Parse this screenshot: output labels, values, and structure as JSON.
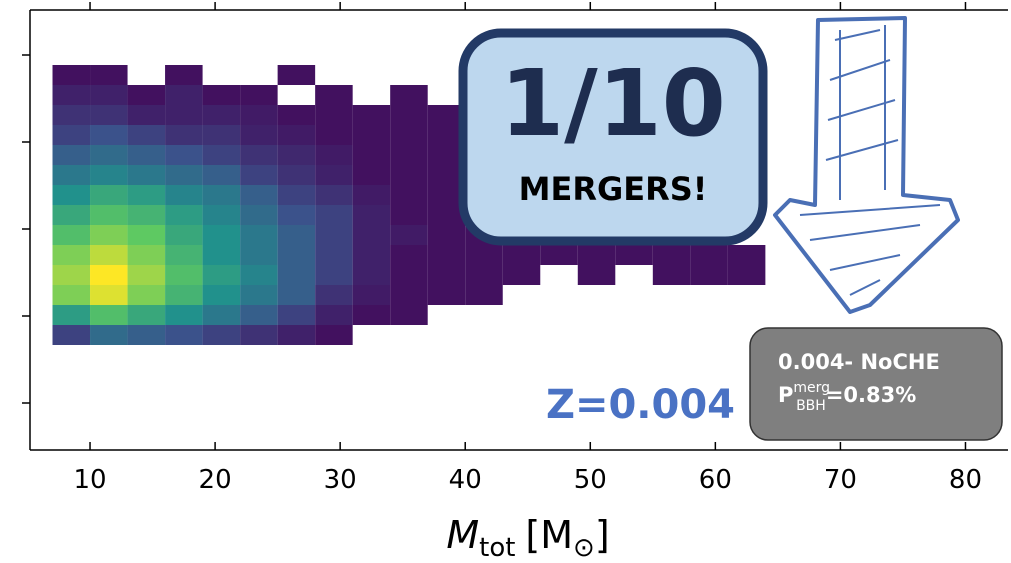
{
  "chart_data": {
    "type": "heatmap2d",
    "colormap": "viridis",
    "xlabel": {
      "symbol": "M",
      "subscript": "tot",
      "unit_open": "[M",
      "unit_sub": "⊙",
      "unit_close": "]"
    },
    "xlim": [
      5.2,
      83.4
    ],
    "xticks": [
      10,
      20,
      30,
      40,
      50,
      60,
      70,
      80
    ],
    "x_bins": [
      7,
      10,
      13,
      16,
      19,
      22,
      25,
      28,
      31,
      34,
      37,
      40,
      43,
      46,
      49,
      52,
      55,
      58,
      61,
      64
    ],
    "z": [
      [
        0.05,
        0.05,
        null,
        0.05,
        null,
        null,
        0.05,
        null,
        null,
        null,
        null,
        null,
        null,
        null,
        null,
        null,
        null,
        null,
        null
      ],
      [
        0.1,
        0.1,
        0.05,
        0.1,
        0.05,
        0.05,
        null,
        0.05,
        null,
        0.05,
        null,
        null,
        null,
        null,
        null,
        null,
        null,
        null,
        null
      ],
      [
        0.15,
        0.15,
        0.1,
        0.1,
        0.1,
        0.08,
        0.05,
        0.05,
        0.05,
        0.05,
        0.05,
        0.05,
        null,
        null,
        null,
        null,
        null,
        null,
        null
      ],
      [
        0.2,
        0.25,
        0.2,
        0.15,
        0.15,
        0.1,
        0.08,
        0.05,
        0.05,
        0.05,
        0.05,
        null,
        null,
        null,
        null,
        null,
        null,
        null,
        null
      ],
      [
        0.3,
        0.35,
        0.3,
        0.25,
        0.2,
        0.15,
        0.12,
        0.08,
        0.05,
        0.05,
        0.05,
        0.05,
        null,
        null,
        null,
        null,
        null,
        null,
        null
      ],
      [
        0.4,
        0.45,
        0.4,
        0.35,
        0.3,
        0.2,
        0.15,
        0.1,
        0.05,
        0.05,
        0.05,
        0.05,
        null,
        null,
        null,
        null,
        null,
        null,
        null
      ],
      [
        0.5,
        0.6,
        0.55,
        0.45,
        0.4,
        0.3,
        0.2,
        0.15,
        0.08,
        0.05,
        0.05,
        0.05,
        null,
        null,
        null,
        null,
        null,
        null,
        null
      ],
      [
        0.6,
        0.7,
        0.65,
        0.55,
        0.45,
        0.35,
        0.25,
        0.2,
        0.1,
        0.05,
        0.05,
        0.05,
        0.05,
        null,
        null,
        null,
        null,
        null,
        null
      ],
      [
        0.7,
        0.8,
        0.75,
        0.6,
        0.5,
        0.4,
        0.3,
        0.2,
        0.1,
        0.08,
        0.05,
        0.05,
        0.05,
        0.05,
        0.05,
        0.05,
        0.05,
        0.05,
        null
      ],
      [
        0.8,
        0.9,
        0.8,
        0.65,
        0.5,
        0.4,
        0.3,
        0.2,
        0.1,
        0.05,
        0.05,
        0.05,
        0.05,
        0.05,
        0.05,
        0.05,
        0.05,
        0.05,
        0.05
      ],
      [
        0.85,
        1.0,
        0.85,
        0.7,
        0.55,
        0.45,
        0.3,
        0.2,
        0.1,
        0.05,
        0.05,
        0.05,
        0.05,
        null,
        0.05,
        null,
        0.05,
        0.05,
        0.05
      ],
      [
        0.8,
        0.95,
        0.8,
        0.65,
        0.5,
        0.4,
        0.3,
        0.15,
        0.08,
        0.05,
        0.05,
        0.05,
        null,
        null,
        null,
        null,
        null,
        null,
        null
      ],
      [
        0.55,
        0.7,
        0.6,
        0.5,
        0.4,
        0.3,
        0.2,
        0.1,
        0.05,
        0.05,
        null,
        null,
        null,
        null,
        null,
        null,
        null,
        null,
        null
      ],
      [
        0.2,
        0.35,
        0.3,
        0.25,
        0.2,
        0.15,
        0.1,
        0.05,
        null,
        null,
        null,
        null,
        null,
        null,
        null,
        null,
        null,
        null,
        null
      ]
    ],
    "annotations": {
      "fraction": "1/10",
      "mergers": "MERGERS!",
      "redshift": "Z=0.004",
      "model": "0.004- NoCHE",
      "prob": {
        "base": "P",
        "sup": "merg",
        "sub": "BBH",
        "value": "=0.83%"
      }
    }
  }
}
